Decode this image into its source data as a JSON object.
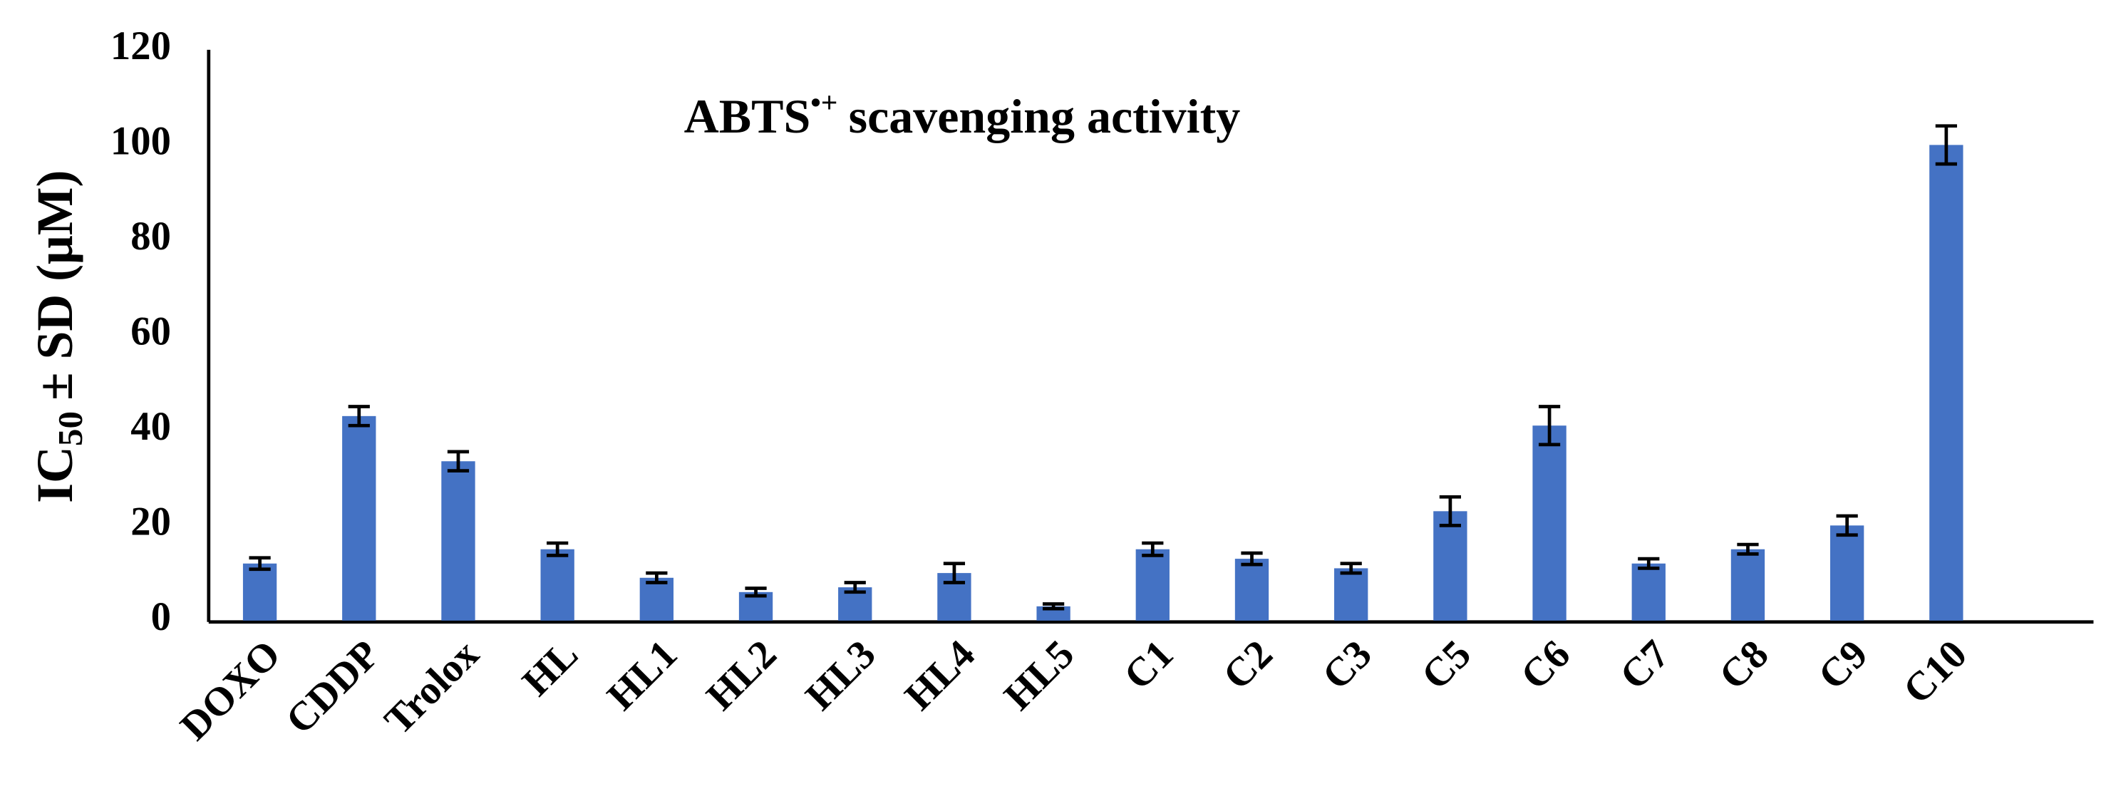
{
  "chart_data": {
    "type": "bar",
    "title": "ABTS",
    "title_superscript": "•+",
    "title_rest": "scavenging activity",
    "ylabel": "IC",
    "ylabel_subscript": "50",
    "ylabel_rest": "± SD (μM)",
    "categories": [
      "DOXO",
      "CDDP",
      "Trolox",
      "HL",
      "HL1",
      "HL2",
      "HL3",
      "HL4",
      "HL5",
      "C1",
      "C2",
      "C3",
      "C5",
      "C6",
      "C7",
      "C8",
      "C9",
      "C10"
    ],
    "values": [
      12,
      43,
      33.5,
      15,
      9,
      6,
      7,
      10,
      3,
      15,
      13,
      11,
      23,
      41,
      12,
      15,
      20,
      100
    ],
    "errors": [
      1.2,
      2,
      2,
      1.3,
      1,
      0.8,
      1,
      2,
      0.5,
      1.3,
      1.2,
      1,
      3,
      4,
      1,
      1,
      2,
      4
    ],
    "color": "#4472c4",
    "ylim": [
      0,
      120
    ],
    "yticks": [
      0,
      20,
      40,
      60,
      80,
      100,
      120
    ],
    "grid": false
  }
}
